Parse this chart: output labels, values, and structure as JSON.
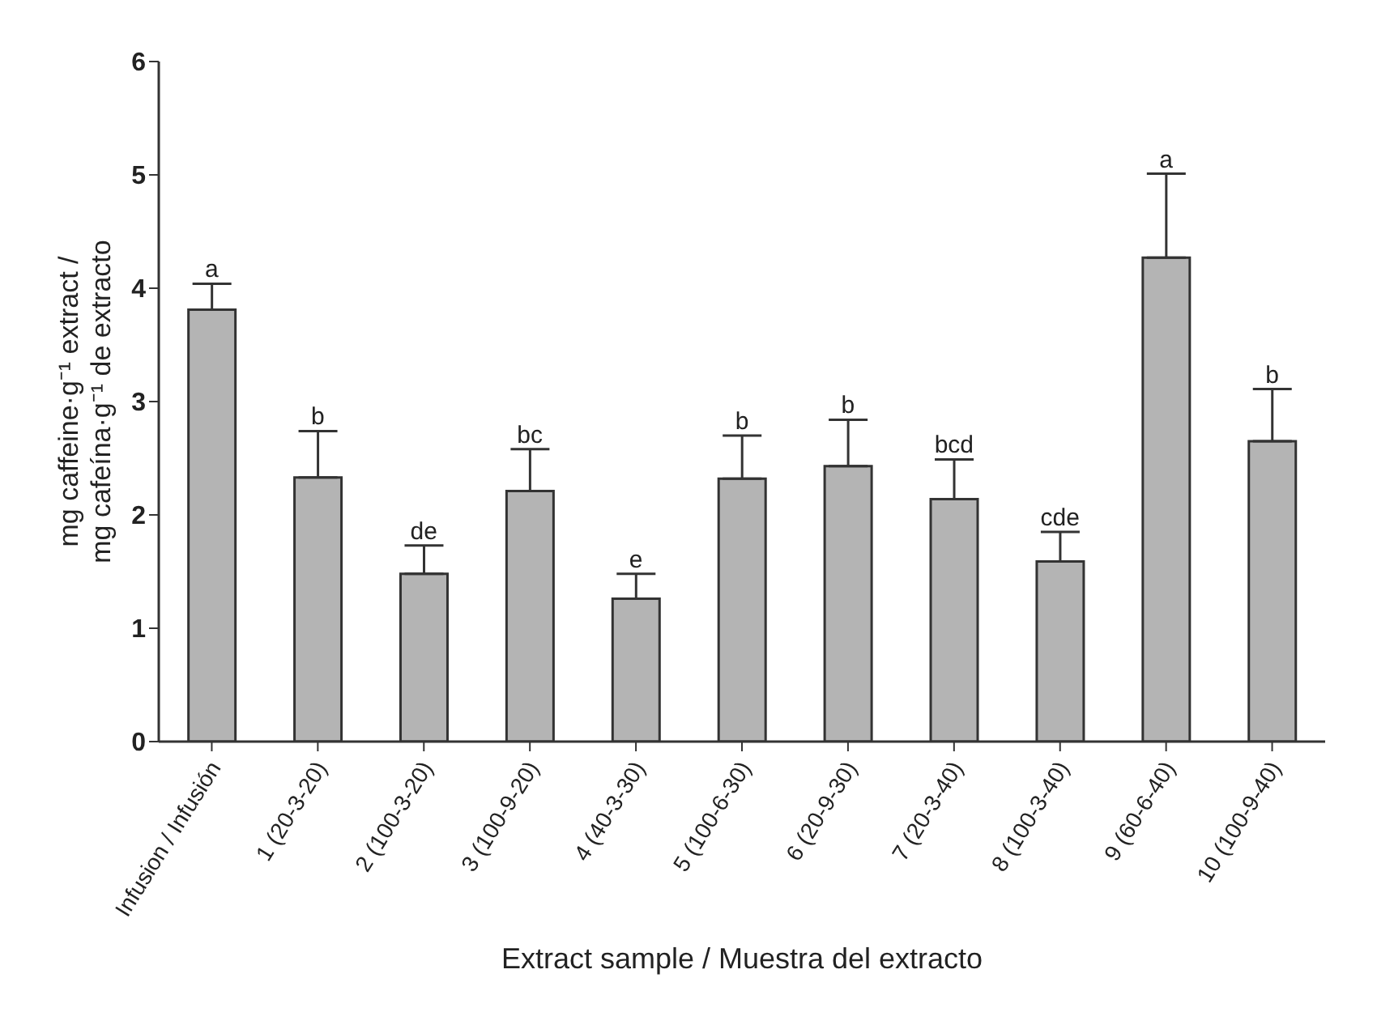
{
  "chart_data": {
    "type": "bar",
    "xlabel": "Extract sample / Muestra del extracto",
    "ylabel": "mg caffeine·g⁻¹ extract /\nmg cafeína·g⁻¹ de extracto",
    "categories": [
      "Infusion / Infusión",
      "1 (20-3-20)",
      "2 (100-3-20)",
      "3 (100-9-20)",
      "4 (40-3-30)",
      "5 (100-6-30)",
      "6 (20-9-30)",
      "7 (20-3-40)",
      "8 (100-3-40)",
      "9 (60-6-40)",
      "10 (100-9-40)"
    ],
    "values": [
      3.81,
      2.33,
      1.48,
      2.21,
      1.26,
      2.32,
      2.43,
      2.14,
      1.59,
      4.27,
      2.65
    ],
    "errors": [
      [
        3.81,
        4.04
      ],
      [
        2.33,
        2.74
      ],
      [
        1.48,
        1.73
      ],
      [
        2.21,
        2.58
      ],
      [
        1.26,
        1.48
      ],
      [
        2.32,
        2.7
      ],
      [
        2.43,
        2.84
      ],
      [
        2.14,
        2.49
      ],
      [
        1.59,
        1.85
      ],
      [
        4.27,
        5.01
      ],
      [
        2.65,
        3.11
      ]
    ],
    "color": "#b4b4b4",
    "ylim": [
      0,
      6
    ],
    "yticks": [
      0,
      1,
      2,
      3,
      4,
      5,
      6
    ],
    "grid": false,
    "legend": false,
    "annotations": [
      "a",
      "b",
      "de",
      "bc",
      "e",
      "b",
      "b",
      "bcd",
      "cde",
      "a",
      "b"
    ]
  }
}
